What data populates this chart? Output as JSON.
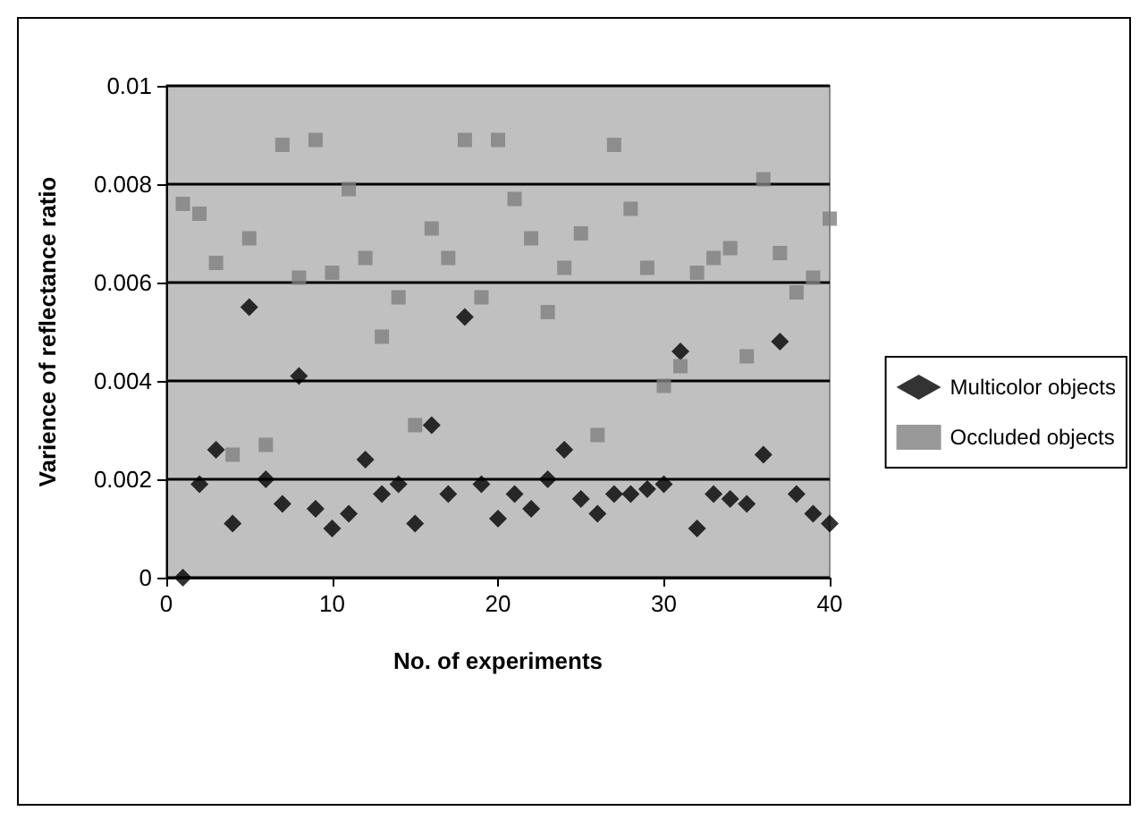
{
  "chart_data": {
    "type": "scatter",
    "xlabel": "No. of experiments",
    "ylabel": "Varience of reflectance ratio",
    "x": [
      1,
      2,
      3,
      4,
      5,
      6,
      7,
      8,
      9,
      10,
      11,
      12,
      13,
      14,
      15,
      16,
      17,
      18,
      19,
      20,
      21,
      22,
      23,
      24,
      25,
      26,
      27,
      28,
      29,
      30,
      31,
      32,
      33,
      34,
      35,
      36,
      37,
      38,
      39,
      40
    ],
    "series": [
      {
        "name": "Multicolor objects",
        "color": "#000000",
        "marker": "diamond",
        "values": [
          0,
          0.0019,
          0.0026,
          0.0011,
          0.0055,
          0.002,
          0.0015,
          0.0041,
          0.0014,
          0.001,
          0.0013,
          0.0024,
          0.0017,
          0.0019,
          0.0011,
          0.0031,
          0.0017,
          0.0053,
          0.0019,
          0.0012,
          0.0017,
          0.0014,
          0.002,
          0.0026,
          0.0016,
          0.0013,
          0.0017,
          0.0017,
          0.0018,
          0.0019,
          0.0046,
          0.001,
          0.0017,
          0.0016,
          0.0015,
          0.0025,
          0.0048,
          0.0017,
          0.0013,
          0.0011
        ]
      },
      {
        "name": "Occluded objects",
        "color": "#808080",
        "marker": "square",
        "values": [
          0.0076,
          0.0074,
          0.0064,
          0.0025,
          0.0069,
          0.0027,
          0.0088,
          0.0061,
          0.0089,
          0.0062,
          0.0079,
          0.0065,
          0.0049,
          0.0057,
          0.0031,
          0.0071,
          0.0065,
          0.0089,
          0.0057,
          0.0089,
          0.0077,
          0.0069,
          0.0054,
          0.0063,
          0.007,
          0.0029,
          0.0088,
          0.0075,
          0.0063,
          0.0039,
          0.0043,
          0.0062,
          0.0065,
          0.0067,
          0.0045,
          0.0081,
          0.0066,
          0.0058,
          0.0061,
          0.0073
        ]
      }
    ],
    "xlim": [
      0,
      40
    ],
    "xticks": [
      0,
      10,
      20,
      30,
      40
    ],
    "ylim": [
      0,
      0.01
    ],
    "yticks": [
      0,
      0.002,
      0.004,
      0.006,
      0.008,
      0.01
    ],
    "grid": "y",
    "legend": "right"
  }
}
